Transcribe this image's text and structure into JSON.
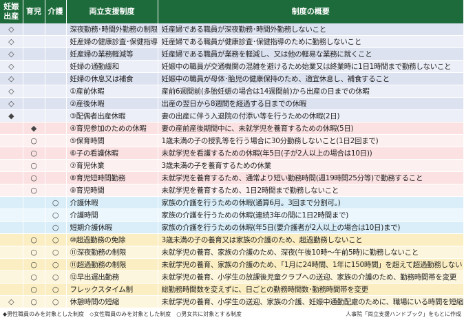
{
  "headers": [
    "妊娠\n出産",
    "育児",
    "介護",
    "両立支援制度",
    "制度の概要"
  ],
  "rows": [
    {
      "g": 0,
      "m": [
        "◇",
        "",
        ""
      ],
      "name": "深夜勤務･時間外勤務の制限",
      "desc": "妊産婦である職員が深夜勤務･時間外勤務しないこと"
    },
    {
      "g": 0,
      "m": [
        "◇",
        "",
        ""
      ],
      "name": "妊産婦の健康診査･保健指導",
      "desc": "妊産婦である職員が健康診査･保健指導のために勤務しないこと"
    },
    {
      "g": 0,
      "m": [
        "◇",
        "",
        ""
      ],
      "name": "妊産婦の業務軽減等",
      "desc": "妊産婦である職員が業務を軽減し、又は他の軽易な業務に就くこと"
    },
    {
      "g": 0,
      "m": [
        "◇",
        "",
        ""
      ],
      "name": "妊婦の通勤緩和",
      "desc": "妊娠中の職員が交通機関の混雑を避けるため始業又は終業時に1日1時間まで勤務しないこと"
    },
    {
      "g": 0,
      "m": [
        "◇",
        "",
        ""
      ],
      "name": "妊婦の休息又は補食",
      "desc": "妊娠中の職員が母体･胎児の健康保持のため、適宜休息し、補食すること"
    },
    {
      "g": 0,
      "m": [
        "◇",
        "",
        ""
      ],
      "name": "①産前休暇",
      "desc": "産前6週間前(多胎妊娠の場合は14週間前)から出産の日までの休暇"
    },
    {
      "g": 0,
      "m": [
        "◇",
        "",
        ""
      ],
      "name": "②産後休暇",
      "desc": "出産の翌日から8週間を経過する日までの休暇"
    },
    {
      "g": 0,
      "m": [
        "◆",
        "",
        ""
      ],
      "name": "③配偶者出産休暇",
      "desc": "妻の出産に伴う入退院の付添い等を行うための休暇(2日)"
    },
    {
      "g": 1,
      "m": [
        "",
        "◆",
        ""
      ],
      "name": "④育児参加のための休暇",
      "desc": "妻の産前産後期間中に、未就学児を養育するための休暇(5日)"
    },
    {
      "g": 1,
      "m": [
        "",
        "○",
        ""
      ],
      "name": "⑤保育時間",
      "desc": "1歳未満の子の授乳等を行う場合に30分勤務しないこと(1日2回まで)"
    },
    {
      "g": 1,
      "m": [
        "",
        "○",
        ""
      ],
      "name": "⑥子の看護休暇",
      "desc": "未就学児を看護するための休暇(年5日(子が2人以上の場合は10日))"
    },
    {
      "g": 1,
      "m": [
        "",
        "○",
        ""
      ],
      "name": "⑦育児休業",
      "desc": "3歳未満の子を養育するための休業"
    },
    {
      "g": 1,
      "m": [
        "",
        "○",
        ""
      ],
      "name": "⑧育児短時間勤務",
      "desc": "未就学児を養育するため、通常より短い勤務時間(週19時間25分等)で勤務すること"
    },
    {
      "g": 1,
      "m": [
        "",
        "○",
        ""
      ],
      "name": "⑨育児時間",
      "desc": "未就学児を養育するため、1日2時間まで勤務しないこと"
    },
    {
      "g": 2,
      "m": [
        "",
        "",
        "○"
      ],
      "name": "介護休暇",
      "desc": "家族の介護を行うための休暇(通算6月。3回まで分割可。)"
    },
    {
      "g": 2,
      "m": [
        "",
        "",
        "○"
      ],
      "name": "介護時間",
      "desc": "家族の介護を行うための休暇(連続3年の間に1日2時間まで)"
    },
    {
      "g": 2,
      "m": [
        "",
        "",
        "○"
      ],
      "name": "短期介護休暇",
      "desc": "家族の介護を行うための休暇(年5日(要介護者が2人以上の場合は10日)まで)"
    },
    {
      "g": 3,
      "m": [
        "",
        "○",
        "○"
      ],
      "name": "⑩超過勤務の免除",
      "desc": "3歳未満の子の養育又は家族の介護のため、超過勤務しないこと"
    },
    {
      "g": 3,
      "m": [
        "",
        "○",
        "○"
      ],
      "name": "⑪深夜勤務の制限",
      "desc": "未就学児の養育、家族の介護のため、深夜(午後10時～午前5時)に勤務しないこと"
    },
    {
      "g": 3,
      "m": [
        "",
        "○",
        "○"
      ],
      "name": "⑪超過勤務の制限",
      "desc": "未就学児の養育、家族の介護のため、「1月に24時間、1年に150時間」を超えて超過勤務しないこと"
    },
    {
      "g": 3,
      "m": [
        "",
        "○",
        "○"
      ],
      "name": "⑫早出遅出勤務",
      "desc": "未就学児の養育、小学生の放課後児童クラブへの送迎、家族の介護のため、勤務時間帯を変更"
    },
    {
      "g": 3,
      "m": [
        "",
        "○",
        "○"
      ],
      "name": "フレックスタイム制",
      "desc": "総勤務時間数を変えずに、日ごとの勤務時間数･勤務時間帯を変更"
    },
    {
      "g": 3,
      "m": [
        "◇",
        "○",
        "○"
      ],
      "name": "休憩時間の短縮",
      "desc": "未就学児の養育、小学生の送迎、家族の介護、妊娠中通勤配慮のために、職場にいる時間を短縮"
    }
  ],
  "legend": "◆男性職員のみを対象とした制度　◇女性職員のみを対象とした制度　○男女共に対象とする制度",
  "source": "人事院「両立支援ハンドブック」をもとに作成",
  "colors": {
    "header": "#1d6a3b",
    "maternity": "#dde2f0",
    "childcare": "#fbe1e2",
    "care": "#d9eef9",
    "both": "#fbeec3"
  }
}
